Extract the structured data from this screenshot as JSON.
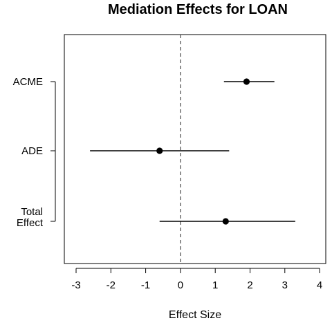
{
  "chart_data": {
    "type": "forest-plot",
    "title": "Mediation Effects for LOAN",
    "xlabel": "Effect Size",
    "ylabel": "",
    "xlim": [
      -3.5,
      4.2
    ],
    "x_ticks": [
      -3,
      -2,
      -1,
      0,
      1,
      2,
      3,
      4
    ],
    "x_tick_labels": [
      "-3",
      "-2",
      "-1",
      "0",
      "1",
      "2",
      "3",
      "4"
    ],
    "reference_line": 0,
    "grid": false,
    "categories": [
      {
        "label_lines": [
          "ACME"
        ],
        "estimate": 1.9,
        "ci_low": 1.25,
        "ci_high": 2.7
      },
      {
        "label_lines": [
          "ADE"
        ],
        "estimate": -0.6,
        "ci_low": -2.6,
        "ci_high": 1.4
      },
      {
        "label_lines": [
          "Total",
          "Effect"
        ],
        "estimate": 1.3,
        "ci_low": -0.6,
        "ci_high": 3.3
      }
    ]
  }
}
